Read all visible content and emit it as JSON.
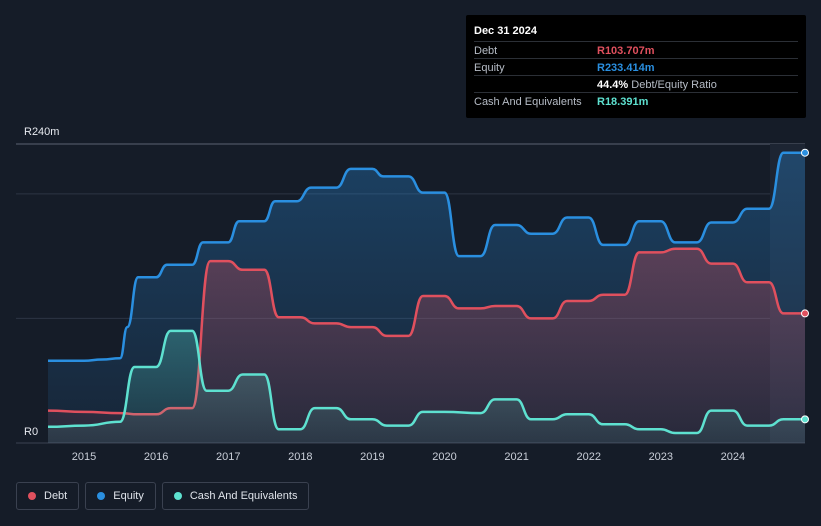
{
  "chart_data": {
    "type": "area",
    "currency_prefix": "R",
    "ylim": [
      0,
      240
    ],
    "y_ticks": [
      {
        "value": 240,
        "label": "R240m"
      },
      {
        "value": 0,
        "label": "R0"
      }
    ],
    "x_ticks": [
      {
        "x": 2015.0,
        "label": "2015"
      },
      {
        "x": 2016.0,
        "label": "2016"
      },
      {
        "x": 2017.0,
        "label": "2017"
      },
      {
        "x": 2018.0,
        "label": "2018"
      },
      {
        "x": 2019.0,
        "label": "2019"
      },
      {
        "x": 2020.0,
        "label": "2020"
      },
      {
        "x": 2021.0,
        "label": "2021"
      },
      {
        "x": 2022.0,
        "label": "2022"
      },
      {
        "x": 2023.0,
        "label": "2023"
      },
      {
        "x": 2024.0,
        "label": "2024"
      }
    ],
    "xlim": [
      2014.5,
      2025.0
    ],
    "series": [
      {
        "name": "Equity",
        "color": "#2a8fe0",
        "points": [
          [
            2014.5,
            66
          ],
          [
            2015.0,
            66
          ],
          [
            2015.25,
            67
          ],
          [
            2015.5,
            68
          ],
          [
            2015.6,
            93
          ],
          [
            2015.75,
            133
          ],
          [
            2016.0,
            133
          ],
          [
            2016.15,
            143
          ],
          [
            2016.5,
            143
          ],
          [
            2016.65,
            161
          ],
          [
            2017.0,
            161
          ],
          [
            2017.15,
            178
          ],
          [
            2017.5,
            178
          ],
          [
            2017.65,
            194
          ],
          [
            2017.95,
            194
          ],
          [
            2018.15,
            205
          ],
          [
            2018.5,
            205
          ],
          [
            2018.7,
            220
          ],
          [
            2019.0,
            220
          ],
          [
            2019.15,
            214
          ],
          [
            2019.5,
            214
          ],
          [
            2019.7,
            201
          ],
          [
            2020.0,
            201
          ],
          [
            2020.2,
            150
          ],
          [
            2020.5,
            150
          ],
          [
            2020.7,
            175
          ],
          [
            2021.0,
            175
          ],
          [
            2021.2,
            168
          ],
          [
            2021.5,
            168
          ],
          [
            2021.7,
            181
          ],
          [
            2022.0,
            181
          ],
          [
            2022.2,
            159
          ],
          [
            2022.5,
            159
          ],
          [
            2022.7,
            178
          ],
          [
            2023.0,
            178
          ],
          [
            2023.2,
            161
          ],
          [
            2023.5,
            161
          ],
          [
            2023.7,
            177
          ],
          [
            2024.0,
            177
          ],
          [
            2024.2,
            188
          ],
          [
            2024.5,
            188
          ],
          [
            2024.7,
            233
          ],
          [
            2025.0,
            233
          ]
        ]
      },
      {
        "name": "Debt",
        "color": "#e0505e",
        "points": [
          [
            2014.5,
            26
          ],
          [
            2015.0,
            25
          ],
          [
            2015.5,
            24
          ],
          [
            2015.75,
            23
          ],
          [
            2016.0,
            23
          ],
          [
            2016.2,
            28
          ],
          [
            2016.5,
            28
          ],
          [
            2016.75,
            146
          ],
          [
            2017.0,
            146
          ],
          [
            2017.2,
            139
          ],
          [
            2017.5,
            139
          ],
          [
            2017.7,
            101
          ],
          [
            2018.0,
            101
          ],
          [
            2018.2,
            96
          ],
          [
            2018.5,
            96
          ],
          [
            2018.7,
            93
          ],
          [
            2019.0,
            93
          ],
          [
            2019.2,
            86
          ],
          [
            2019.5,
            86
          ],
          [
            2019.7,
            118
          ],
          [
            2020.0,
            118
          ],
          [
            2020.2,
            108
          ],
          [
            2020.5,
            108
          ],
          [
            2020.7,
            110
          ],
          [
            2021.0,
            110
          ],
          [
            2021.2,
            100
          ],
          [
            2021.5,
            100
          ],
          [
            2021.7,
            114
          ],
          [
            2022.0,
            114
          ],
          [
            2022.2,
            119
          ],
          [
            2022.5,
            119
          ],
          [
            2022.7,
            153
          ],
          [
            2023.0,
            153
          ],
          [
            2023.2,
            156
          ],
          [
            2023.5,
            156
          ],
          [
            2023.7,
            144
          ],
          [
            2024.0,
            144
          ],
          [
            2024.2,
            129
          ],
          [
            2024.5,
            129
          ],
          [
            2024.7,
            104
          ],
          [
            2025.0,
            104
          ]
        ]
      },
      {
        "name": "Cash And Equivalents",
        "color": "#5ee1d0",
        "points": [
          [
            2014.5,
            13
          ],
          [
            2015.0,
            14
          ],
          [
            2015.5,
            17
          ],
          [
            2015.7,
            61
          ],
          [
            2016.0,
            61
          ],
          [
            2016.2,
            90
          ],
          [
            2016.5,
            90
          ],
          [
            2016.7,
            42
          ],
          [
            2017.0,
            42
          ],
          [
            2017.2,
            55
          ],
          [
            2017.5,
            55
          ],
          [
            2017.7,
            11
          ],
          [
            2018.0,
            11
          ],
          [
            2018.2,
            28
          ],
          [
            2018.5,
            28
          ],
          [
            2018.7,
            19
          ],
          [
            2019.0,
            19
          ],
          [
            2019.2,
            14
          ],
          [
            2019.5,
            14
          ],
          [
            2019.7,
            25
          ],
          [
            2020.0,
            25
          ],
          [
            2020.5,
            24
          ],
          [
            2020.7,
            35
          ],
          [
            2021.0,
            35
          ],
          [
            2021.2,
            19
          ],
          [
            2021.5,
            19
          ],
          [
            2021.7,
            23
          ],
          [
            2022.0,
            23
          ],
          [
            2022.2,
            15
          ],
          [
            2022.5,
            15
          ],
          [
            2022.7,
            11
          ],
          [
            2023.0,
            11
          ],
          [
            2023.2,
            8
          ],
          [
            2023.5,
            8
          ],
          [
            2023.7,
            26
          ],
          [
            2024.0,
            26
          ],
          [
            2024.2,
            14
          ],
          [
            2024.5,
            14
          ],
          [
            2024.7,
            19
          ],
          [
            2025.0,
            19
          ]
        ]
      }
    ]
  },
  "tooltip": {
    "date": "Dec 31 2024",
    "rows": [
      {
        "label": "Debt",
        "value": "R103.707m",
        "color": "#e0505e",
        "extra": ""
      },
      {
        "label": "Equity",
        "value": "R233.414m",
        "color": "#2a8fe0",
        "extra": ""
      },
      {
        "label": "",
        "value": "44.4%",
        "color": "#ffffff",
        "extra": "Debt/Equity Ratio"
      },
      {
        "label": "Cash And Equivalents",
        "value": "R18.391m",
        "color": "#5ee1d0",
        "extra": ""
      }
    ]
  },
  "legend": [
    {
      "label": "Debt",
      "color": "#e0505e"
    },
    {
      "label": "Equity",
      "color": "#2a8fe0"
    },
    {
      "label": "Cash And Equivalents",
      "color": "#5ee1d0"
    }
  ]
}
